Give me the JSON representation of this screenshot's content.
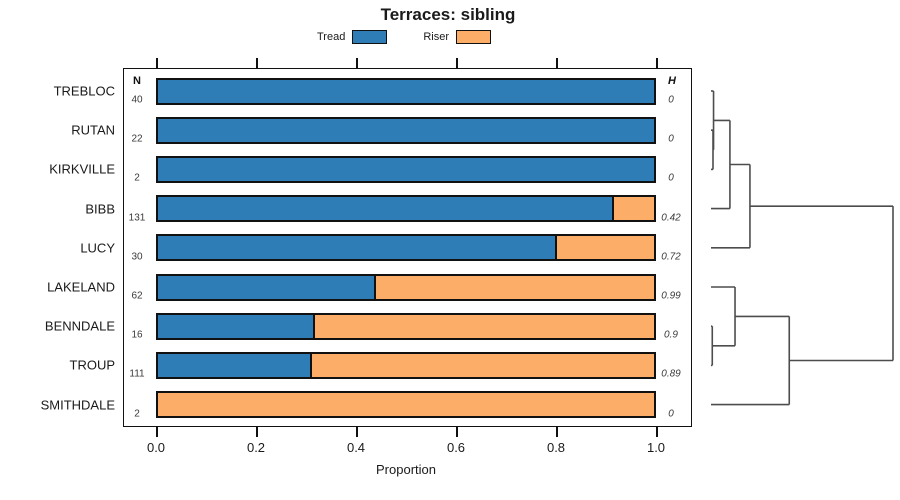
{
  "title": "Terraces: sibling",
  "legend": {
    "items": [
      {
        "label": "Tread",
        "color": "#2e7db6"
      },
      {
        "label": "Riser",
        "color": "#fcad68"
      }
    ]
  },
  "columns": {
    "n_header": "N",
    "h_header": "H"
  },
  "axis": {
    "label": "Proportion",
    "tick_labels": [
      "0.0",
      "0.2",
      "0.4",
      "0.6",
      "0.8",
      "1.0"
    ],
    "tick_values": [
      0,
      0.2,
      0.4,
      0.6,
      0.8,
      1.0
    ]
  },
  "chart_data": {
    "type": "bar",
    "variant": "horizontal-stacked-proportion",
    "title": "Terraces: sibling",
    "xlabel": "Proportion",
    "xlim": [
      0,
      1
    ],
    "grid": false,
    "legend_position": "top",
    "categories": [
      "TREBLOC",
      "RUTAN",
      "KIRKVILLE",
      "BIBB",
      "LUCY",
      "LAKELAND",
      "BENNDALE",
      "TROUP",
      "SMITHDALE"
    ],
    "n_values": [
      40,
      22,
      2,
      131,
      30,
      62,
      16,
      111,
      2
    ],
    "h_values": [
      "0",
      "0",
      "0",
      "0.42",
      "0.72",
      "0.99",
      "0.9",
      "0.89",
      "0"
    ],
    "series": [
      {
        "name": "Tread",
        "color": "#2e7db6",
        "values": [
          1,
          1,
          1,
          0.915,
          0.8,
          0.435,
          0.3125,
          0.306,
          0
        ]
      },
      {
        "name": "Riser",
        "color": "#fcad68",
        "values": [
          0,
          0,
          0,
          0.085,
          0.2,
          0.565,
          0.6875,
          0.694,
          1
        ]
      }
    ],
    "dendrogram": {
      "orientation": "right",
      "line_color": "#4d4d4d",
      "tree": {
        "h": 1.0,
        "children": [
          {
            "h": 0.214,
            "children": [
              {
                "h": 0.104,
                "children": [
                  {
                    "h": 0.014,
                    "children": [
                      {
                        "leaf": "TREBLOC"
                      },
                      {
                        "h": 0.011,
                        "children": [
                          {
                            "leaf": "RUTAN"
                          },
                          {
                            "leaf": "KIRKVILLE"
                          }
                        ]
                      }
                    ]
                  },
                  {
                    "leaf": "BIBB"
                  }
                ]
              },
              {
                "leaf": "LUCY"
              }
            ]
          },
          {
            "h": 0.43,
            "children": [
              {
                "h": 0.132,
                "children": [
                  {
                    "leaf": "LAKELAND"
                  },
                  {
                    "h": 0.007,
                    "children": [
                      {
                        "leaf": "BENNDALE"
                      },
                      {
                        "leaf": "TROUP"
                      }
                    ]
                  }
                ]
              },
              {
                "leaf": "SMITHDALE"
              }
            ]
          }
        ]
      }
    }
  }
}
